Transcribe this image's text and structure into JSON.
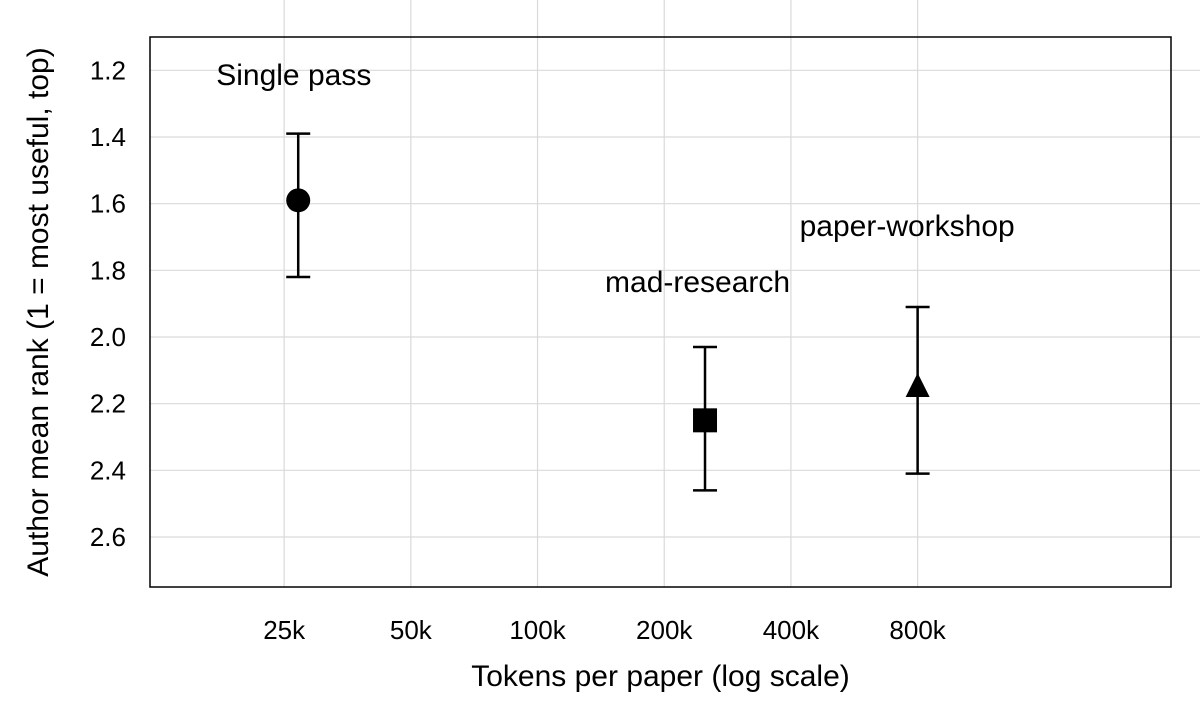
{
  "chart_data": {
    "type": "scatter",
    "xlabel": "Tokens per paper (log scale)",
    "ylabel": "Author mean rank (1 = most useful, top)",
    "x_scale": "log",
    "xlim": [
      12000,
      3200000
    ],
    "ylim": [
      1.1,
      2.75
    ],
    "y_inverted": true,
    "grid": true,
    "x_ticks": [
      {
        "value": 25000,
        "label": "25k"
      },
      {
        "value": 50000,
        "label": "50k"
      },
      {
        "value": 100000,
        "label": "100k"
      },
      {
        "value": 200000,
        "label": "200k"
      },
      {
        "value": 400000,
        "label": "400k"
      },
      {
        "value": 800000,
        "label": "800k"
      }
    ],
    "y_ticks": [
      {
        "value": 1.2,
        "label": "1.2"
      },
      {
        "value": 1.4,
        "label": "1.4"
      },
      {
        "value": 1.6,
        "label": "1.6"
      },
      {
        "value": 1.8,
        "label": "1.8"
      },
      {
        "value": 2.0,
        "label": "2.0"
      },
      {
        "value": 2.2,
        "label": "2.2"
      },
      {
        "value": 2.4,
        "label": "2.4"
      },
      {
        "value": 2.6,
        "label": "2.6"
      }
    ],
    "points": [
      {
        "label": "Single pass",
        "x": 27000,
        "y": 1.59,
        "err_low": 1.39,
        "err_high": 1.82,
        "marker": "circle"
      },
      {
        "label": "mad-research",
        "x": 250000,
        "y": 2.25,
        "err_low": 2.03,
        "err_high": 2.46,
        "marker": "square"
      },
      {
        "label": "paper-workshop",
        "x": 800000,
        "y": 2.15,
        "err_low": 1.91,
        "err_high": 2.41,
        "marker": "triangle"
      }
    ],
    "colors": {
      "marks": "#000000",
      "grid": "#d9d9d9"
    }
  }
}
